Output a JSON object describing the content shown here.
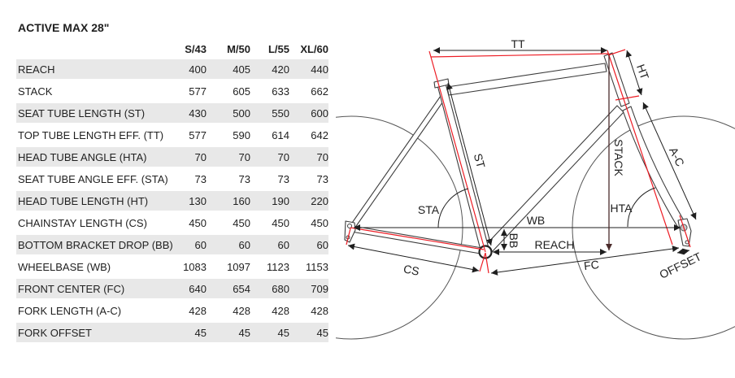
{
  "title": "ACTIVE MAX 28\"",
  "table": {
    "columns": [
      "S/43",
      "M/50",
      "L/55",
      "XL/60"
    ],
    "rows": [
      {
        "label": "REACH",
        "values": [
          400,
          405,
          420,
          440
        ]
      },
      {
        "label": "STACK",
        "values": [
          577,
          605,
          633,
          662
        ]
      },
      {
        "label": "SEAT TUBE LENGTH (ST)",
        "values": [
          430,
          500,
          550,
          600
        ]
      },
      {
        "label": "TOP TUBE LENGTH EFF. (TT)",
        "values": [
          577,
          590,
          614,
          642
        ]
      },
      {
        "label": "HEAD TUBE ANGLE (HTA)",
        "values": [
          70,
          70,
          70,
          70
        ]
      },
      {
        "label": "SEAT TUBE ANGLE EFF. (STA)",
        "values": [
          73,
          73,
          73,
          73
        ]
      },
      {
        "label": "HEAD TUBE LENGTH (HT)",
        "values": [
          130,
          160,
          190,
          220
        ]
      },
      {
        "label": "CHAINSTAY LENGTH (CS)",
        "values": [
          450,
          450,
          450,
          450
        ]
      },
      {
        "label": "BOTTOM BRACKET DROP (BB)",
        "values": [
          60,
          60,
          60,
          60
        ]
      },
      {
        "label": "WHEELBASE (WB)",
        "values": [
          1083,
          1097,
          1123,
          1153
        ]
      },
      {
        "label": "FRONT CENTER (FC)",
        "values": [
          640,
          654,
          680,
          709
        ]
      },
      {
        "label": "FORK LENGTH (A-C)",
        "values": [
          428,
          428,
          428,
          428
        ]
      },
      {
        "label": "FORK OFFSET",
        "values": [
          45,
          45,
          45,
          45
        ]
      }
    ]
  },
  "diagram": {
    "labels": {
      "tt": "TT",
      "ht": "HT",
      "st": "ST",
      "stack": "STACK",
      "ac": "A-C",
      "sta": "STA",
      "hta": "HTA",
      "wb": "WB",
      "bb": "BB",
      "reach": "REACH",
      "cs": "CS",
      "fc": "FC",
      "offset": "OFFSET"
    }
  },
  "colors": {
    "background": "#ffffff",
    "text": "#1f1f1f",
    "row_shade": "#e8e8e8",
    "frame_line": "#3c3c3c",
    "dimension_line": "#1f1f1f",
    "highlight_red": "#ed1c24",
    "stack_line": "#4a2b2b",
    "wheel_line": "#565656"
  }
}
